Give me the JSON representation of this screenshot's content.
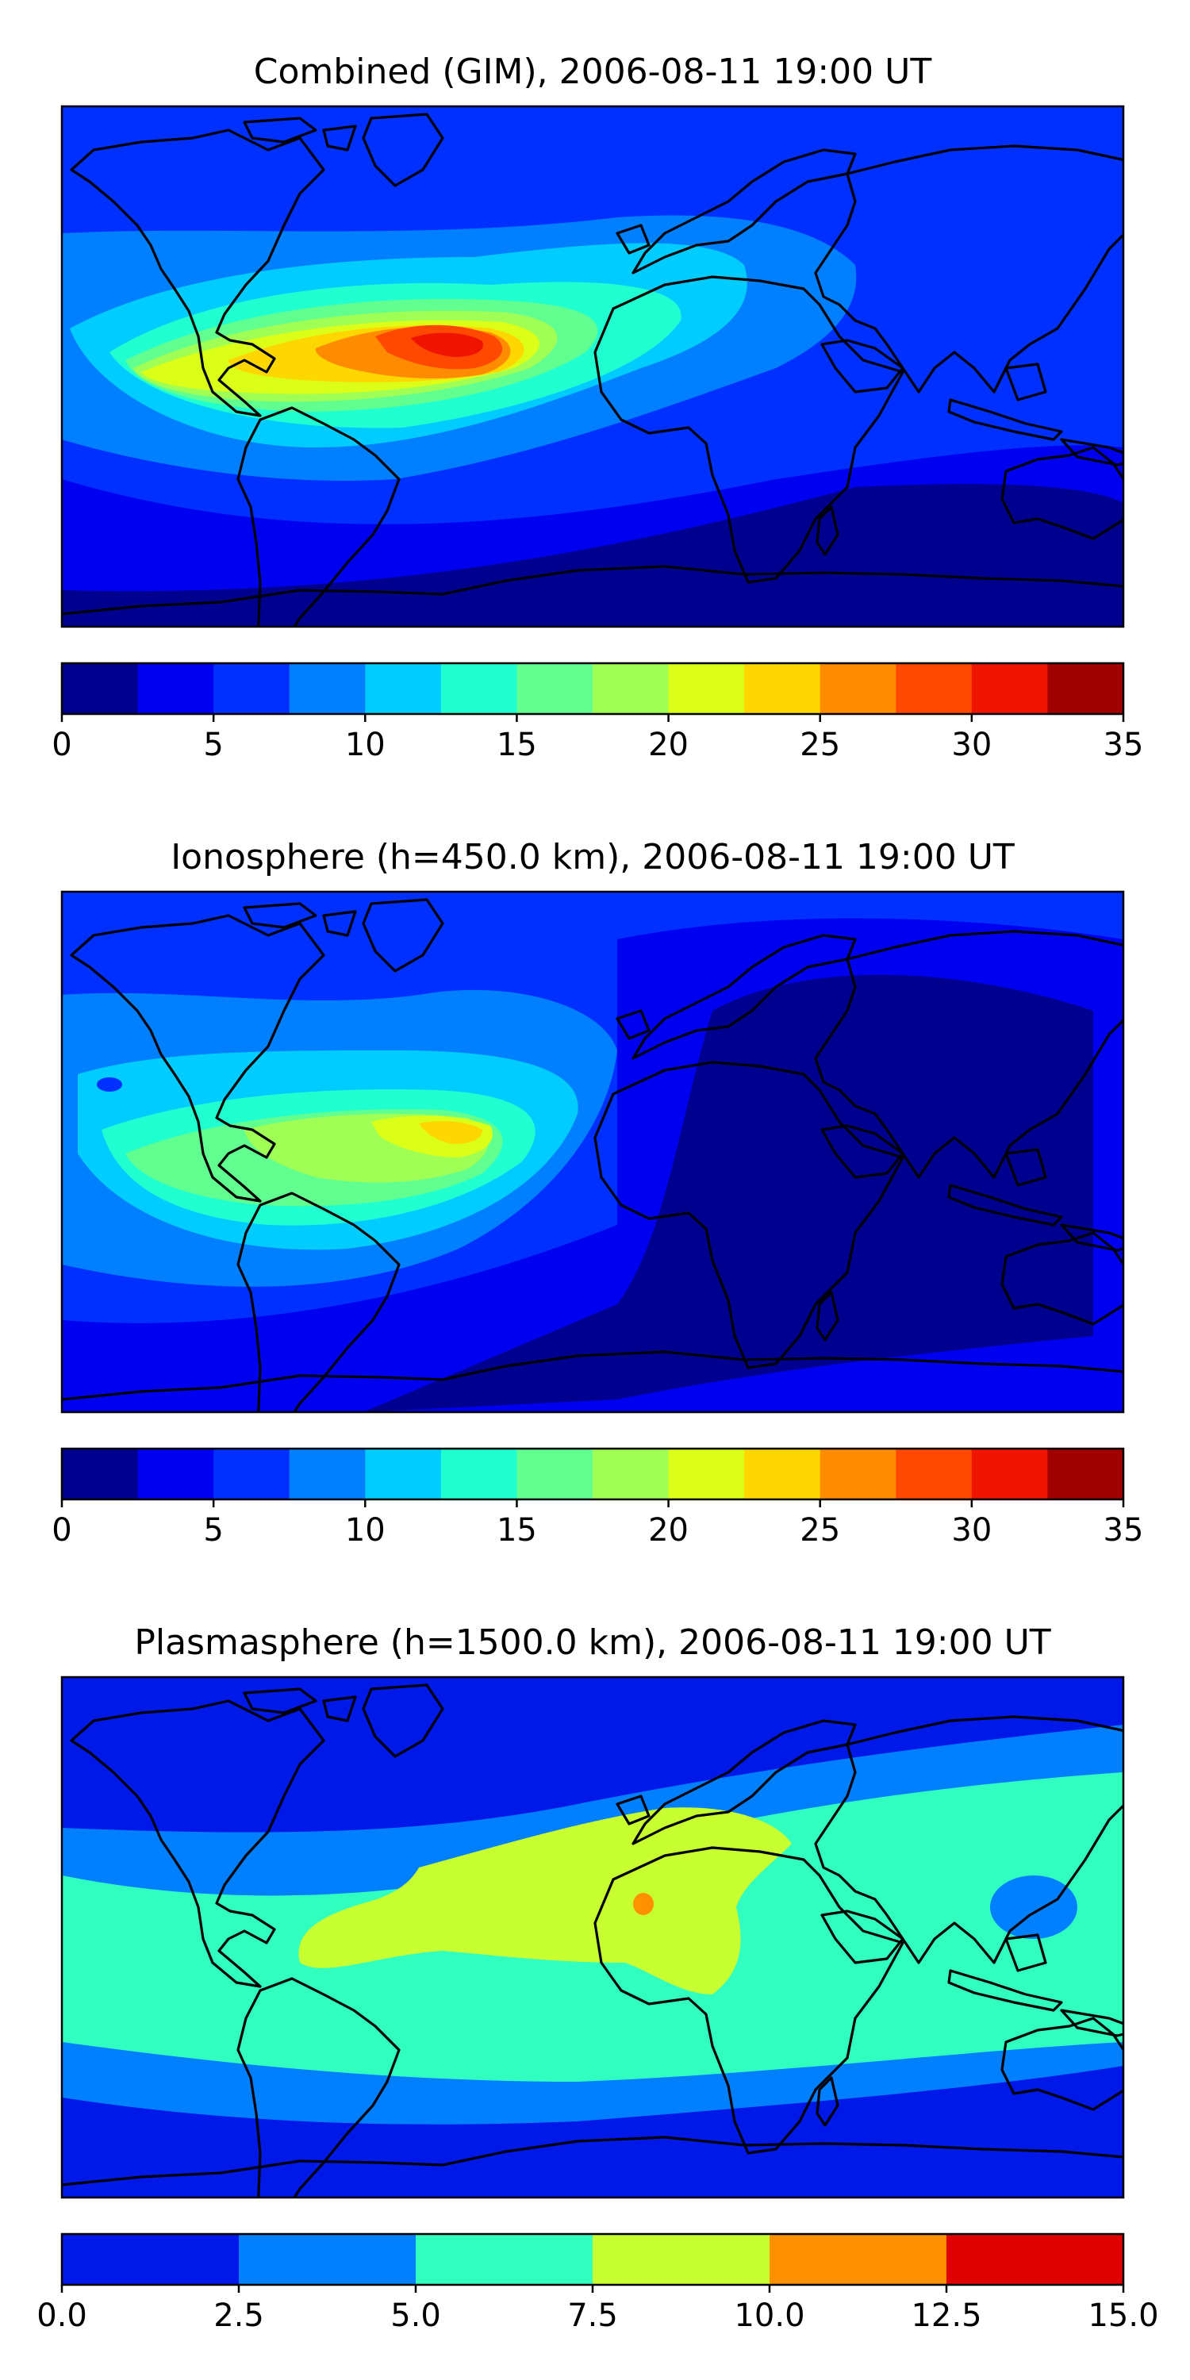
{
  "chart_data": [
    {
      "type": "heatmap",
      "title": "Combined (GIM), 2006-08-11 19:00 UT",
      "colorbar": {
        "levels": [
          0,
          2.5,
          5,
          7.5,
          10,
          12.5,
          15,
          17.5,
          20,
          22.5,
          25,
          27.5,
          30,
          32.5,
          35
        ],
        "colors": [
          "#00008e",
          "#0000f0",
          "#0030ff",
          "#0080ff",
          "#00ccff",
          "#20ffd0",
          "#60ff90",
          "#a0ff55",
          "#dcff18",
          "#ffd700",
          "#ff8c00",
          "#ff4800",
          "#f01400",
          "#a00000"
        ],
        "ticks": [
          0,
          5,
          10,
          15,
          20,
          25,
          30,
          35
        ],
        "tick_labels": [
          "0",
          "5",
          "10",
          "15",
          "20",
          "25",
          "30",
          "35"
        ]
      },
      "peak_region": "South America / tropical Atlantic",
      "peak_value": 31
    },
    {
      "type": "heatmap",
      "title": "Ionosphere  (h=450.0 km), 2006-08-11 19:00 UT",
      "colorbar": {
        "levels": [
          0,
          2.5,
          5,
          7.5,
          10,
          12.5,
          15,
          17.5,
          20,
          22.5,
          25,
          27.5,
          30,
          32.5,
          35
        ],
        "colors": [
          "#00008e",
          "#0000f0",
          "#0030ff",
          "#0080ff",
          "#00ccff",
          "#20ffd0",
          "#60ff90",
          "#a0ff55",
          "#dcff18",
          "#ffd700",
          "#ff8c00",
          "#ff4800",
          "#f01400",
          "#a00000"
        ],
        "ticks": [
          0,
          5,
          10,
          15,
          20,
          25,
          30,
          35
        ],
        "tick_labels": [
          "0",
          "5",
          "10",
          "15",
          "20",
          "25",
          "30",
          "35"
        ]
      },
      "peak_region": "northern South America",
      "peak_value": 26
    },
    {
      "type": "heatmap",
      "title": "Plasmasphere (h=1500.0 km), 2006-08-11 19:00 UT",
      "colorbar": {
        "levels": [
          0,
          2.5,
          5,
          7.5,
          10,
          12.5,
          15
        ],
        "colors": [
          "#0018e8",
          "#0080ff",
          "#30ffc0",
          "#c8ff30",
          "#ff9000",
          "#e00000"
        ],
        "ticks": [
          0,
          2.5,
          5,
          7.5,
          10,
          12.5,
          15
        ],
        "tick_labels": [
          "0.0",
          "2.5",
          "5.0",
          "7.5",
          "10.0",
          "12.5",
          "15.0"
        ]
      },
      "peak_region": "central Africa",
      "peak_value": 10.5
    }
  ],
  "styles": {
    "background": "#ffffff",
    "coastline_color": "#000000",
    "frame_color": "#000000"
  }
}
